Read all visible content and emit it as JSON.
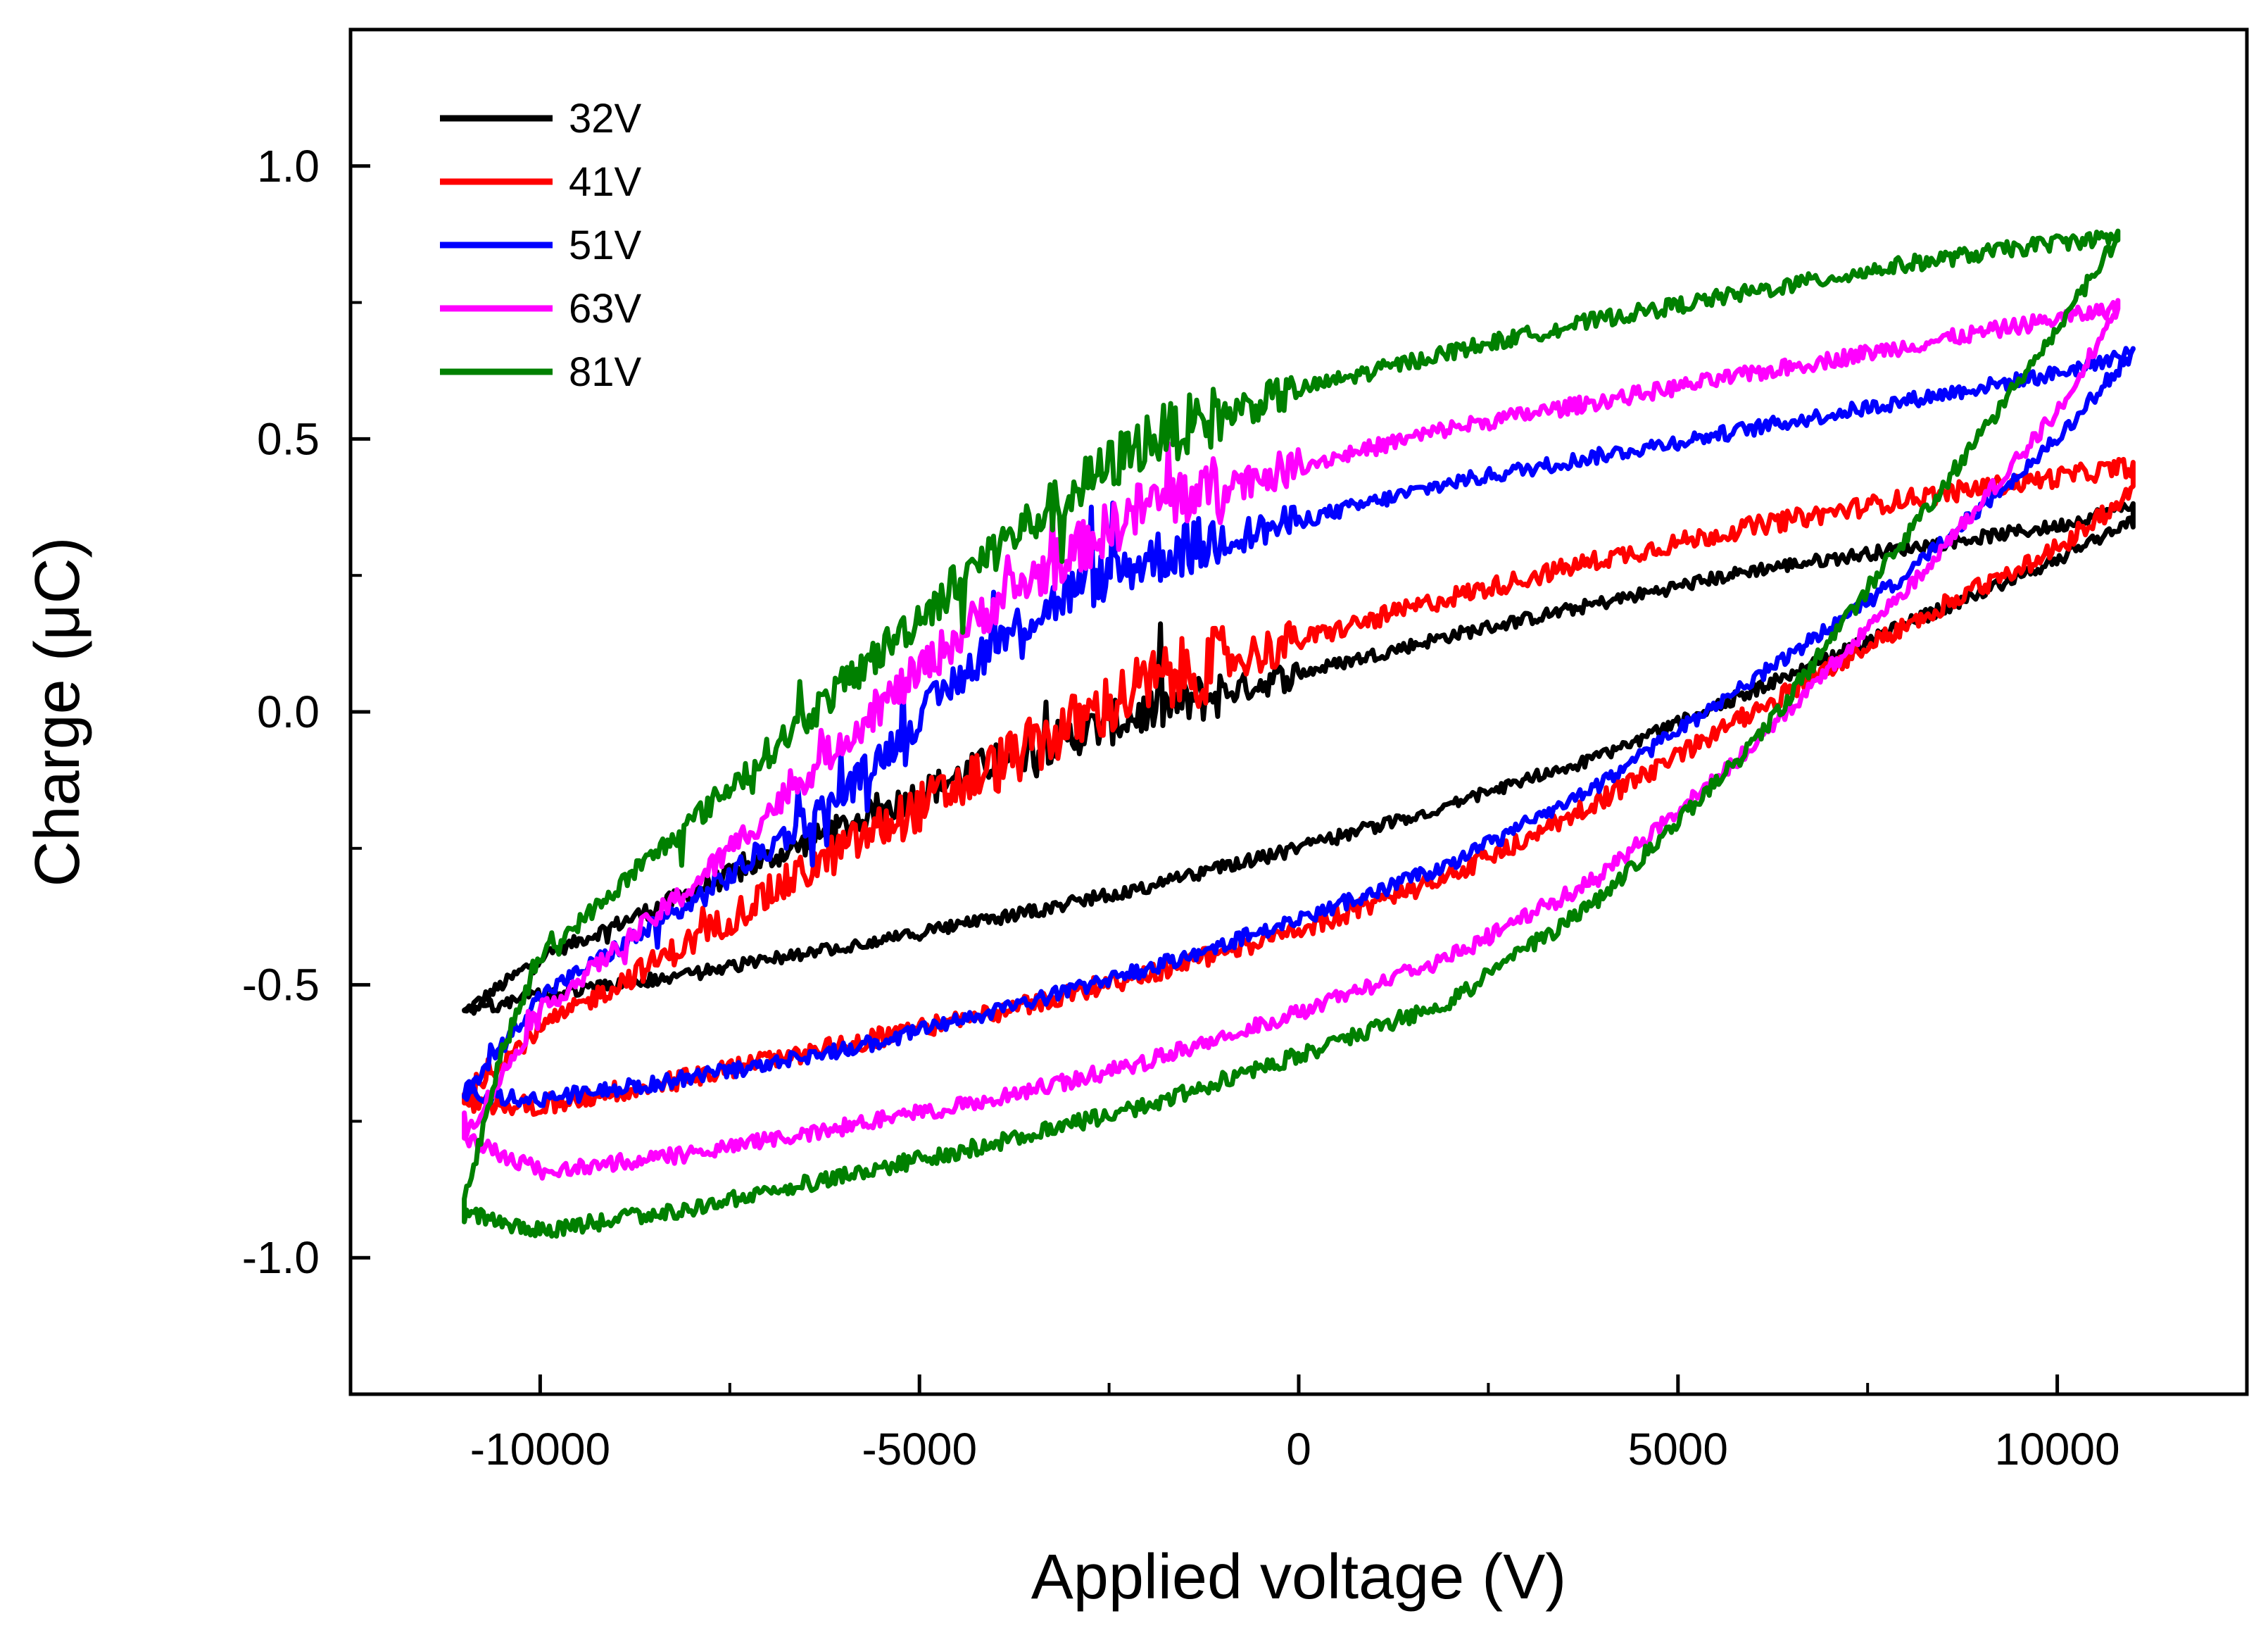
{
  "chart_data": {
    "type": "line",
    "title": "",
    "xlabel": "Applied voltage (V)",
    "ylabel": "Charge (μC)",
    "xlim": [
      -12500,
      12500
    ],
    "ylim": [
      -1.25,
      1.25
    ],
    "xticks": [
      -10000,
      -5000,
      0,
      5000,
      10000
    ],
    "xtick_labels": [
      "-10000",
      "-5000",
      "0",
      "5000",
      "10000"
    ],
    "yticks": [
      -1.0,
      -0.5,
      0.0,
      0.5,
      1.0
    ],
    "ytick_labels": [
      "-1.0",
      "-0.5",
      "0.0",
      "0.5",
      "1.0"
    ],
    "grid": false,
    "legend_position": "top-left",
    "series": [
      {
        "name": "32V",
        "color": "#000000",
        "noise": 0.012,
        "upper": [
          [
            -11000,
            -0.55
          ],
          [
            -10000,
            -0.45
          ],
          [
            -8000,
            -0.33
          ],
          [
            -6000,
            -0.21
          ],
          [
            -4000,
            -0.09
          ],
          [
            -2000,
            0.0
          ],
          [
            0,
            0.07
          ],
          [
            2000,
            0.14
          ],
          [
            4000,
            0.2
          ],
          [
            6000,
            0.26
          ],
          [
            8000,
            0.3
          ],
          [
            10000,
            0.34
          ],
          [
            11000,
            0.38
          ]
        ],
        "lower": [
          [
            11000,
            0.35
          ],
          [
            10000,
            0.28
          ],
          [
            8000,
            0.16
          ],
          [
            6000,
            0.04
          ],
          [
            4000,
            -0.08
          ],
          [
            2000,
            -0.17
          ],
          [
            0,
            -0.25
          ],
          [
            -2000,
            -0.32
          ],
          [
            -4000,
            -0.38
          ],
          [
            -6000,
            -0.43
          ],
          [
            -8000,
            -0.48
          ],
          [
            -10000,
            -0.52
          ],
          [
            -11000,
            -0.55
          ]
        ]
      },
      {
        "name": "41V",
        "color": "#ff0000",
        "noise": 0.018,
        "upper": [
          [
            -11000,
            -0.7
          ],
          [
            -10000,
            -0.58
          ],
          [
            -8000,
            -0.42
          ],
          [
            -6000,
            -0.25
          ],
          [
            -4000,
            -0.1
          ],
          [
            -2000,
            0.05
          ],
          [
            0,
            0.13
          ],
          [
            2000,
            0.21
          ],
          [
            4000,
            0.28
          ],
          [
            6000,
            0.34
          ],
          [
            8000,
            0.39
          ],
          [
            10000,
            0.43
          ],
          [
            11000,
            0.45
          ]
        ],
        "lower": [
          [
            11000,
            0.4
          ],
          [
            10000,
            0.3
          ],
          [
            8000,
            0.16
          ],
          [
            6000,
            0.0
          ],
          [
            4000,
            -0.16
          ],
          [
            2000,
            -0.3
          ],
          [
            0,
            -0.4
          ],
          [
            -2000,
            -0.48
          ],
          [
            -4000,
            -0.55
          ],
          [
            -6000,
            -0.61
          ],
          [
            -8000,
            -0.67
          ],
          [
            -10000,
            -0.72
          ],
          [
            -11000,
            -0.72
          ]
        ]
      },
      {
        "name": "51V",
        "color": "#0000ff",
        "noise": 0.014,
        "upper": [
          [
            -11000,
            -0.7
          ],
          [
            -10000,
            -0.52
          ],
          [
            -8000,
            -0.35
          ],
          [
            -6000,
            -0.15
          ],
          [
            -4000,
            0.13
          ],
          [
            -3000,
            0.22
          ],
          [
            -2000,
            0.28
          ],
          [
            0,
            0.35
          ],
          [
            2000,
            0.42
          ],
          [
            4000,
            0.47
          ],
          [
            6000,
            0.52
          ],
          [
            8000,
            0.57
          ],
          [
            10000,
            0.62
          ],
          [
            11000,
            0.66
          ]
        ],
        "lower": [
          [
            11000,
            0.66
          ],
          [
            10000,
            0.5
          ],
          [
            8000,
            0.25
          ],
          [
            6000,
            0.06
          ],
          [
            4000,
            -0.13
          ],
          [
            2000,
            -0.28
          ],
          [
            0,
            -0.38
          ],
          [
            -2000,
            -0.47
          ],
          [
            -4000,
            -0.55
          ],
          [
            -6000,
            -0.62
          ],
          [
            -8000,
            -0.67
          ],
          [
            -10000,
            -0.71
          ],
          [
            -11000,
            -0.7
          ]
        ]
      },
      {
        "name": "63V",
        "color": "#ff00ff",
        "noise": 0.015,
        "upper": [
          [
            -11000,
            -0.78
          ],
          [
            -10000,
            -0.55
          ],
          [
            -8000,
            -0.32
          ],
          [
            -6000,
            -0.05
          ],
          [
            -4000,
            0.2
          ],
          [
            -2000,
            0.38
          ],
          [
            0,
            0.45
          ],
          [
            2000,
            0.52
          ],
          [
            4000,
            0.57
          ],
          [
            6000,
            0.62
          ],
          [
            8000,
            0.67
          ],
          [
            10000,
            0.72
          ],
          [
            10800,
            0.74
          ]
        ],
        "lower": [
          [
            10800,
            0.74
          ],
          [
            10000,
            0.55
          ],
          [
            8000,
            0.22
          ],
          [
            6000,
            -0.06
          ],
          [
            4000,
            -0.3
          ],
          [
            2000,
            -0.45
          ],
          [
            0,
            -0.55
          ],
          [
            -2000,
            -0.64
          ],
          [
            -4000,
            -0.71
          ],
          [
            -6000,
            -0.76
          ],
          [
            -8000,
            -0.81
          ],
          [
            -10000,
            -0.84
          ],
          [
            -11000,
            -0.78
          ]
        ]
      },
      {
        "name": "81V",
        "color": "#008000",
        "noise": 0.015,
        "upper": [
          [
            -11000,
            -0.9
          ],
          [
            -10500,
            -0.62
          ],
          [
            -10000,
            -0.45
          ],
          [
            -8000,
            -0.2
          ],
          [
            -6000,
            0.05
          ],
          [
            -4000,
            0.3
          ],
          [
            -2000,
            0.5
          ],
          [
            0,
            0.59
          ],
          [
            2000,
            0.66
          ],
          [
            4000,
            0.72
          ],
          [
            6000,
            0.77
          ],
          [
            8000,
            0.82
          ],
          [
            10000,
            0.86
          ],
          [
            10800,
            0.87
          ]
        ],
        "lower": [
          [
            10800,
            0.87
          ],
          [
            10000,
            0.7
          ],
          [
            8000,
            0.32
          ],
          [
            6000,
            -0.06
          ],
          [
            4000,
            -0.34
          ],
          [
            2000,
            -0.53
          ],
          [
            0,
            -0.63
          ],
          [
            -2000,
            -0.72
          ],
          [
            -4000,
            -0.79
          ],
          [
            -6000,
            -0.85
          ],
          [
            -8000,
            -0.91
          ],
          [
            -10000,
            -0.95
          ],
          [
            -11000,
            -0.92
          ]
        ]
      }
    ]
  }
}
